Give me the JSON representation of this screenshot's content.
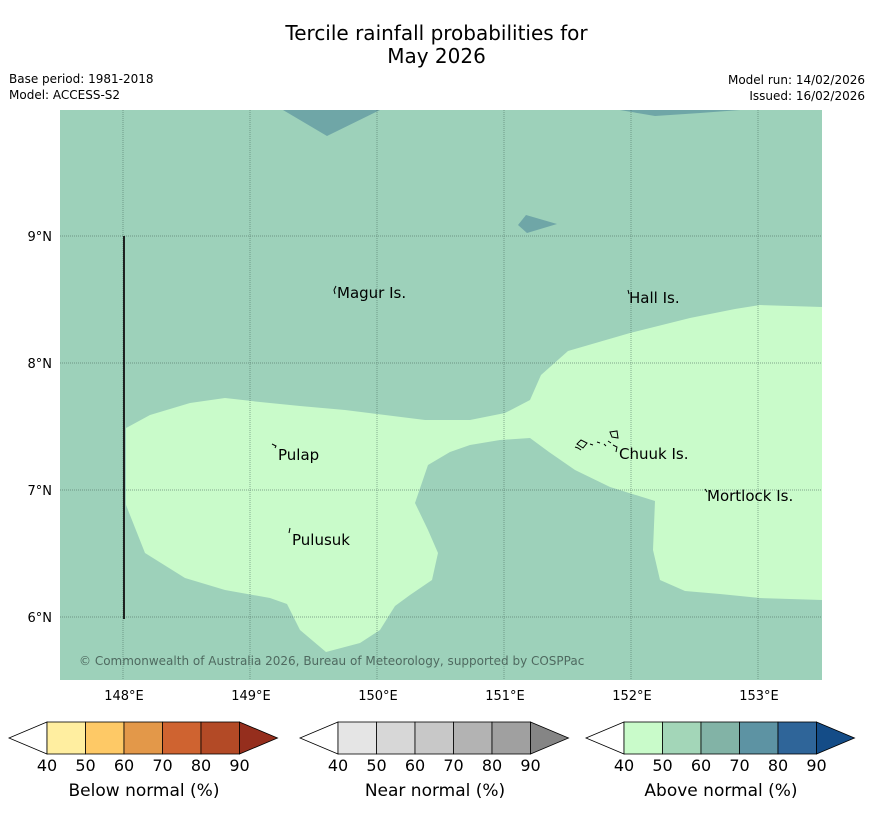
{
  "header": {
    "title_line1": "Tercile rainfall probabilities for",
    "title_line2": "May 2026",
    "base_period": "Base period: 1981-2018",
    "model": "Model: ACCESS-S2",
    "model_run": "Model run: 14/02/2026",
    "issued": "Issued: 16/02/2026"
  },
  "map": {
    "x_axis_labels": [
      "148°E",
      "149°E",
      "150°E",
      "151°E",
      "152°E",
      "153°E"
    ],
    "y_axis_labels": [
      "9°N",
      "8°N",
      "7°N",
      "6°N"
    ],
    "places": [
      "Magur Is.",
      "Hall Is.",
      "Pulap",
      "Chuuk Is.",
      "Mortlock Is.",
      "Pulusuk"
    ],
    "copyright": "© Commonwealth of Australia 2026, Bureau of Meteorology, supported by COSPPac",
    "colors": {
      "above_40_50": "#c9fbca",
      "above_50_60": "#9dd1ba",
      "above_60_70": "#6fa6a7"
    }
  },
  "legends": [
    {
      "title": "Below normal (%)",
      "ticks": [
        "40",
        "50",
        "60",
        "70",
        "80",
        "90"
      ],
      "colors": [
        "#ffeea0",
        "#fec966",
        "#e39849",
        "#cf6330",
        "#b34a26",
        "#952e1d"
      ]
    },
    {
      "title": "Near normal (%)",
      "ticks": [
        "40",
        "50",
        "60",
        "70",
        "80",
        "90"
      ],
      "colors": [
        "#e5e5e5",
        "#d7d7d7",
        "#c8c8c8",
        "#b3b3b3",
        "#a0a0a0",
        "#858585"
      ]
    },
    {
      "title": "Above normal (%)",
      "ticks": [
        "40",
        "50",
        "60",
        "70",
        "80",
        "90"
      ],
      "colors": [
        "#c9fbca",
        "#a3d6b8",
        "#82b3a6",
        "#5d93a3",
        "#2f6599",
        "#144c87"
      ]
    }
  ]
}
